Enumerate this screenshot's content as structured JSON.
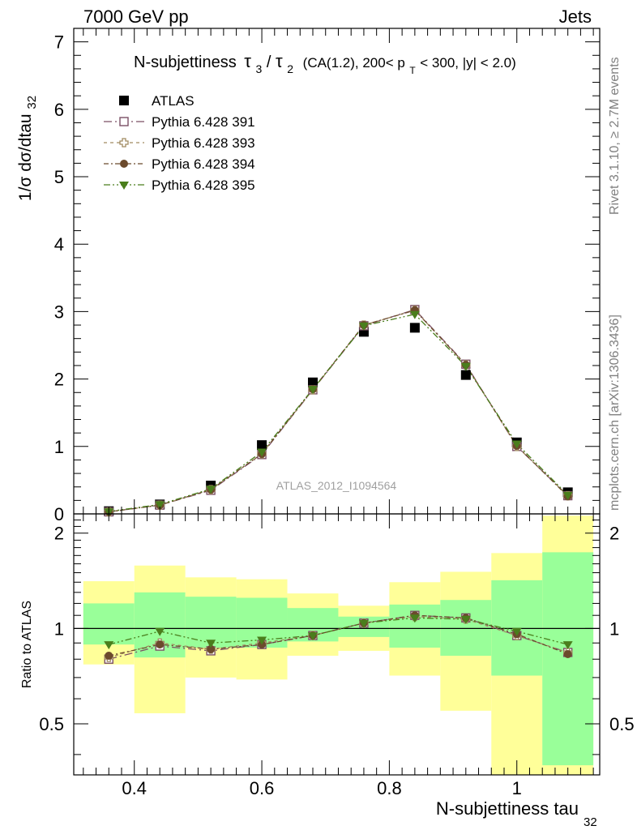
{
  "header": {
    "energy_label": "7000 GeV pp",
    "process_label": "Jets"
  },
  "side_labels": {
    "rivet": "Rivet 3.1.10, ≥ 2.7M events",
    "mcplots": "mcplots.cern.ch [arXiv:1306.3436]"
  },
  "watermark": "ATLAS_2012_I1094564",
  "chart_data": [
    {
      "type": "scatter",
      "title": {
        "main": "N-subjettiness",
        "tau3": "τ",
        "sub3": "3",
        "slash": "/",
        "tau2": "τ",
        "sub2": "2",
        "cuts_a": "(CA(1.2), 200< p",
        "cuts_sub": "T",
        "cuts_b": " < 300, |y| < 2.0)"
      },
      "ylabel": {
        "main": "1/σ dσ/dtau",
        "sub": "32"
      },
      "xlim": [
        0.305,
        1.13
      ],
      "ylim": [
        0,
        7.2
      ],
      "yticks": [
        0,
        1,
        2,
        3,
        4,
        5,
        6,
        7
      ],
      "ytick_labels": [
        "0",
        "1",
        "2",
        "3",
        "4",
        "5",
        "6",
        "7"
      ],
      "x": [
        0.36,
        0.44,
        0.52,
        0.6,
        0.68,
        0.76,
        0.84,
        0.92,
        1.0,
        1.08
      ],
      "series": [
        {
          "name": "ATLAS",
          "marker": "filled-square",
          "color": "#000000",
          "values": [
            0.04,
            0.14,
            0.42,
            1.02,
            1.95,
            2.7,
            2.76,
            2.06,
            1.06,
            0.32
          ]
        },
        {
          "name": "Pythia 6.428 391",
          "marker": "open-square",
          "color": "#7b4f65",
          "values": [
            0.03,
            0.13,
            0.35,
            0.88,
            1.84,
            2.79,
            3.03,
            2.22,
            1.0,
            0.27
          ]
        },
        {
          "name": "Pythia 6.428 393",
          "marker": "open-cross",
          "color": "#a08a60",
          "values": [
            0.03,
            0.13,
            0.36,
            0.89,
            1.84,
            2.8,
            3.02,
            2.21,
            1.0,
            0.27
          ]
        },
        {
          "name": "Pythia 6.428 394",
          "marker": "filled-circle",
          "color": "#6b4a2c",
          "values": [
            0.03,
            0.13,
            0.36,
            0.89,
            1.85,
            2.8,
            3.02,
            2.21,
            1.01,
            0.26
          ]
        },
        {
          "name": "Pythia 6.428 395",
          "marker": "filled-triangle-down",
          "color": "#4a7e1c",
          "values": [
            0.035,
            0.14,
            0.37,
            0.92,
            1.85,
            2.79,
            2.96,
            2.19,
            1.04,
            0.28
          ]
        }
      ]
    },
    {
      "type": "scatter",
      "ylabel": "Ratio to ATLAS",
      "xlabel": {
        "main": "N-subjettiness tau",
        "sub": "32"
      },
      "xlim": [
        0.305,
        1.13
      ],
      "ylim": [
        0.345,
        2.3
      ],
      "yticks": [
        0.5,
        1,
        2
      ],
      "ytick_labels": [
        "0.5",
        "1",
        "2"
      ],
      "xticks": [
        0.4,
        0.6,
        0.8,
        1.0
      ],
      "xtick_labels": [
        "0.4",
        "0.6",
        "0.8",
        "1"
      ],
      "reference_line": 1,
      "bins": [
        {
          "lo": 0.32,
          "hi": 0.4,
          "green": [
            0.89,
            1.2
          ],
          "yellow": [
            0.77,
            1.41
          ]
        },
        {
          "lo": 0.4,
          "hi": 0.48,
          "green": [
            0.81,
            1.3
          ],
          "yellow": [
            0.54,
            1.58
          ]
        },
        {
          "lo": 0.48,
          "hi": 0.56,
          "green": [
            0.87,
            1.26
          ],
          "yellow": [
            0.7,
            1.45
          ]
        },
        {
          "lo": 0.56,
          "hi": 0.64,
          "green": [
            0.87,
            1.25
          ],
          "yellow": [
            0.69,
            1.43
          ]
        },
        {
          "lo": 0.64,
          "hi": 0.72,
          "green": [
            0.91,
            1.16
          ],
          "yellow": [
            0.82,
            1.29
          ]
        },
        {
          "lo": 0.72,
          "hi": 0.8,
          "green": [
            0.94,
            1.09
          ],
          "yellow": [
            0.85,
            1.18
          ]
        },
        {
          "lo": 0.8,
          "hi": 0.88,
          "green": [
            0.87,
            1.19
          ],
          "yellow": [
            0.71,
            1.4
          ]
        },
        {
          "lo": 0.88,
          "hi": 0.96,
          "green": [
            0.82,
            1.23
          ],
          "yellow": [
            0.55,
            1.51
          ]
        },
        {
          "lo": 0.96,
          "hi": 1.04,
          "green": [
            0.71,
            1.42
          ],
          "yellow": [
            0.31,
            1.73
          ]
        },
        {
          "lo": 1.04,
          "hi": 1.12,
          "green": [
            0.37,
            1.74
          ],
          "yellow": [
            0.31,
            2.27
          ]
        }
      ],
      "band_colors": {
        "green": "#99ff99",
        "yellow": "#ffff99"
      },
      "x": [
        0.36,
        0.44,
        0.52,
        0.6,
        0.68,
        0.76,
        0.84,
        0.92,
        1.0,
        1.08
      ],
      "series": [
        {
          "name": "Pythia 6.428 391",
          "values": [
            0.8,
            0.88,
            0.85,
            0.89,
            0.95,
            1.04,
            1.1,
            1.08,
            0.95,
            0.84
          ]
        },
        {
          "name": "Pythia 6.428 393",
          "values": [
            0.81,
            0.9,
            0.86,
            0.9,
            0.95,
            1.04,
            1.09,
            1.07,
            0.95,
            0.84
          ]
        },
        {
          "name": "Pythia 6.428 394",
          "values": [
            0.82,
            0.89,
            0.86,
            0.89,
            0.95,
            1.04,
            1.1,
            1.08,
            0.96,
            0.83
          ]
        },
        {
          "name": "Pythia 6.428 395",
          "values": [
            0.89,
            0.98,
            0.9,
            0.92,
            0.95,
            1.04,
            1.08,
            1.07,
            0.98,
            0.89
          ]
        }
      ]
    }
  ]
}
